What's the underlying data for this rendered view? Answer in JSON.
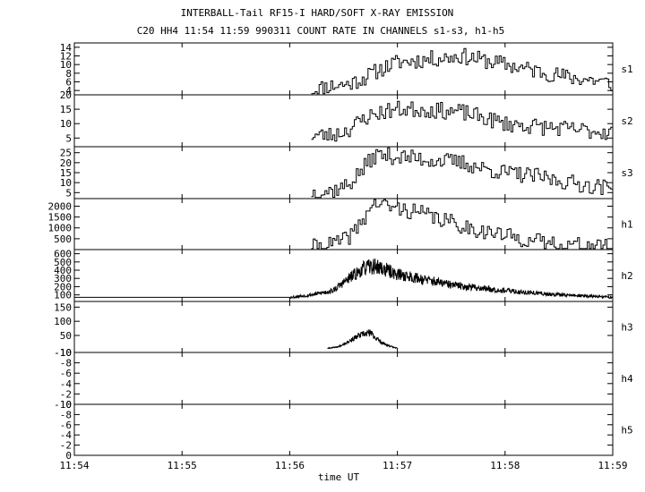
{
  "figure": {
    "title_line1": "INTERBALL-Tail RF15-I HARD/SOFT X-RAY EMISSION",
    "title_line2": "C20 HH4 11:54 11:59 990311  COUNT RATE IN CHANNELS s1-s3, h1-h5"
  },
  "chart_data": {
    "type": "line",
    "xlabel": "time UT",
    "x_ticks": [
      "11:54",
      "11:55",
      "11:56",
      "11:57",
      "11:58",
      "11:59"
    ],
    "x_range_min": [
      0,
      5
    ],
    "panels": [
      {
        "name": "s1",
        "ylim": [
          3,
          15
        ],
        "yticks": [
          4,
          6,
          8,
          10,
          12,
          14
        ],
        "style": "step",
        "seed": 11,
        "points": [
          [
            2.2,
            4
          ],
          [
            2.35,
            5
          ],
          [
            2.55,
            5.5
          ],
          [
            2.7,
            7
          ],
          [
            2.85,
            9
          ],
          [
            3.0,
            10.5
          ],
          [
            3.2,
            11
          ],
          [
            3.4,
            11.5
          ],
          [
            3.6,
            12
          ],
          [
            3.8,
            11
          ],
          [
            4.0,
            10
          ],
          [
            4.2,
            9
          ],
          [
            4.4,
            8
          ],
          [
            4.6,
            7
          ],
          [
            4.8,
            6.5
          ],
          [
            5.0,
            5.5
          ]
        ]
      },
      {
        "name": "s2",
        "ylim": [
          2,
          20
        ],
        "yticks": [
          5,
          10,
          15,
          20
        ],
        "style": "step",
        "seed": 23,
        "points": [
          [
            2.2,
            6
          ],
          [
            2.4,
            6
          ],
          [
            2.55,
            8
          ],
          [
            2.7,
            12
          ],
          [
            2.85,
            14
          ],
          [
            3.0,
            15
          ],
          [
            3.2,
            15
          ],
          [
            3.4,
            14.5
          ],
          [
            3.6,
            14
          ],
          [
            3.8,
            12
          ],
          [
            4.0,
            10
          ],
          [
            4.3,
            9
          ],
          [
            4.6,
            8
          ],
          [
            5.0,
            7
          ]
        ]
      },
      {
        "name": "s3",
        "ylim": [
          2,
          28
        ],
        "yticks": [
          5,
          10,
          15,
          20,
          25
        ],
        "style": "step",
        "seed": 37,
        "points": [
          [
            2.2,
            5
          ],
          [
            2.4,
            6
          ],
          [
            2.55,
            9
          ],
          [
            2.7,
            18
          ],
          [
            2.8,
            24
          ],
          [
            3.0,
            23
          ],
          [
            3.2,
            22
          ],
          [
            3.4,
            21
          ],
          [
            3.6,
            20
          ],
          [
            3.8,
            17
          ],
          [
            4.0,
            15
          ],
          [
            4.3,
            13
          ],
          [
            4.6,
            10
          ],
          [
            5.0,
            7
          ]
        ]
      },
      {
        "name": "h1",
        "ylim": [
          0,
          2350
        ],
        "yticks": [
          500,
          1000,
          1500,
          2000
        ],
        "style": "step",
        "seed": 41,
        "points": [
          [
            2.2,
            100
          ],
          [
            2.35,
            200
          ],
          [
            2.5,
            400
          ],
          [
            2.6,
            800
          ],
          [
            2.7,
            1500
          ],
          [
            2.78,
            2200
          ],
          [
            2.82,
            2150
          ],
          [
            2.9,
            2000
          ],
          [
            3.0,
            1900
          ],
          [
            3.2,
            1700
          ],
          [
            3.4,
            1400
          ],
          [
            3.6,
            1100
          ],
          [
            3.8,
            850
          ],
          [
            4.0,
            650
          ],
          [
            4.2,
            450
          ],
          [
            4.4,
            300
          ],
          [
            4.6,
            220
          ],
          [
            4.8,
            160
          ],
          [
            5.0,
            120
          ]
        ]
      },
      {
        "name": "h2",
        "ylim": [
          20,
          650
        ],
        "yticks": [
          100,
          200,
          300,
          400,
          500,
          600
        ],
        "style": "noise",
        "seed": 53,
        "baseline": [
          [
            0,
            70
          ],
          [
            2.0,
            70
          ]
        ],
        "points": [
          [
            2.0,
            70
          ],
          [
            2.2,
            100
          ],
          [
            2.4,
            150
          ],
          [
            2.55,
            300
          ],
          [
            2.7,
            430
          ],
          [
            2.8,
            450
          ],
          [
            3.0,
            350
          ],
          [
            3.2,
            300
          ],
          [
            3.5,
            220
          ],
          [
            3.8,
            180
          ],
          [
            4.1,
            140
          ],
          [
            4.4,
            110
          ],
          [
            4.7,
            90
          ],
          [
            5.0,
            70
          ]
        ]
      },
      {
        "name": "h3",
        "ylim": [
          -10,
          170
        ],
        "yticks": [
          -10,
          50,
          100,
          150
        ],
        "style": "noise",
        "seed": 67,
        "points": [
          [
            2.35,
            5
          ],
          [
            2.45,
            10
          ],
          [
            2.55,
            30
          ],
          [
            2.65,
            50
          ],
          [
            2.75,
            60
          ],
          [
            2.8,
            40
          ],
          [
            2.9,
            15
          ],
          [
            3.0,
            5
          ]
        ]
      },
      {
        "name": "h4",
        "ylim": [
          0,
          10
        ],
        "yticks": [
          0,
          2,
          4,
          6,
          8,
          10
        ],
        "ytick_labels": [
          "0",
          "-2",
          "-4",
          "-6",
          "-8",
          "-10"
        ],
        "style": "none",
        "points": []
      },
      {
        "name": "h5",
        "ylim": [
          0,
          10
        ],
        "yticks": [
          0,
          2,
          4,
          6,
          8,
          10
        ],
        "ytick_labels": [
          "0",
          "-2",
          "-4",
          "-6",
          "-8",
          "-10"
        ],
        "style": "none",
        "points": []
      }
    ]
  }
}
